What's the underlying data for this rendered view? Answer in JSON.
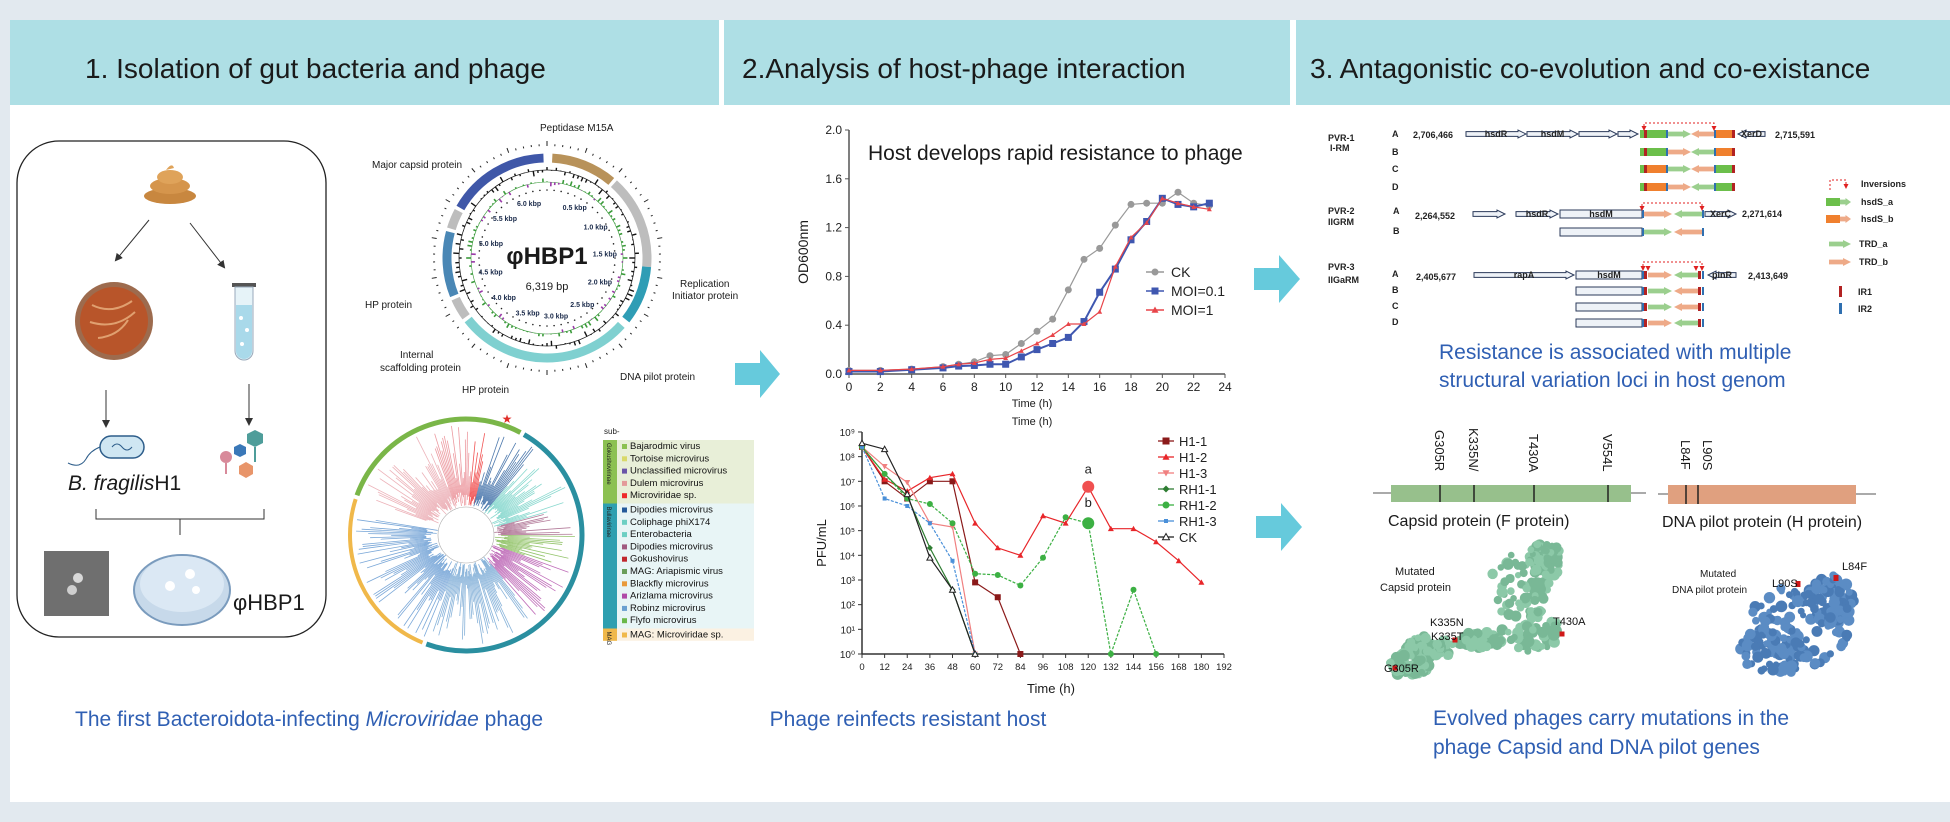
{
  "colors": {
    "header_band": "#aedfe5",
    "card": "#ffffff",
    "background": "#e2e9ef",
    "caption": "#2f5fb3",
    "arrow": "#66cadc"
  },
  "sections": [
    {
      "title": "1. Isolation of gut bacteria and phage"
    },
    {
      "title": "2.Analysis of host-phage interaction"
    },
    {
      "title": "3. Antagonistic co-evolution and co-existance"
    }
  ],
  "isolation": {
    "icons": [
      "stool-icon",
      "petri-dish-icon",
      "culture-tube-icon",
      "bacterium-icon",
      "phage-icon",
      "electron-micrograph",
      "plaque-plate-icon"
    ],
    "bacterium_label_italic": "B. fragilis",
    "bacterium_label_strain": "H1",
    "phage_label": "φHBP1",
    "caption_pre": "The first Bacteroidota-infecting ",
    "caption_italic": "Microviridae",
    "caption_post": " phage"
  },
  "genome_map": {
    "name": "φHBP1",
    "size": "6,319 bp",
    "kbp_labels": [
      "0.5 kbp",
      "1.0 kbp",
      "1.5 kbp",
      "2.0 kbp",
      "2.5 kbp",
      "3.0 kbp",
      "3.5 kbp",
      "4.0 kbp",
      "4.5 kbp",
      "5.0 kbp",
      "5.5 kbp",
      "6.0 kbp"
    ],
    "genes": {
      "peptidase": "Peptidase M15A",
      "major_capsid": "Major capsid protein",
      "replication_1": "Replication",
      "replication_2": "Initiator protein",
      "hp_1": "HP protein",
      "scaffolding_1": "Internal",
      "scaffolding_2": "scaffolding protein",
      "hp_2": "HP protein",
      "dna_pilot": "DNA pilot protein"
    }
  },
  "phylogeny": {
    "legend_header": "sub-",
    "groups": [
      {
        "name": "Gokushovirinae",
        "color": "#8cc152",
        "items": [
          {
            "label": "Bajarodmic virus",
            "color": "#8cc152"
          },
          {
            "label": "Tortoise microvirus",
            "color": "#d9d96a"
          },
          {
            "label": "Unclassified microvirus",
            "color": "#6a55a8"
          },
          {
            "label": "Dulem microvirus",
            "color": "#e39a9a"
          },
          {
            "label": "Microviridae sp.",
            "color": "#ee2a2a"
          }
        ]
      },
      {
        "name": "Bullavirinae",
        "color": "#2e9fb0",
        "items": [
          {
            "label": "Dipodies  microvirus",
            "color": "#245a9a"
          },
          {
            "label": "Coliphage phiX174",
            "color": "#6ccfc3"
          },
          {
            "label": "Enterobacteria",
            "color": "#6ccfc3"
          },
          {
            "label": "Dipodies  microvirus",
            "color": "#a05a80"
          },
          {
            "label": "Gokushovirus",
            "color": "#c0282e"
          },
          {
            "label": "MAG: Ariapismic virus",
            "color": "#6a9e5a"
          },
          {
            "label": "Blackfly microvirus",
            "color": "#e89a3a"
          },
          {
            "label": "Arizlama microvirus",
            "color": "#b04aa8"
          },
          {
            "label": "Robinz microvirus",
            "color": "#6aa0d0"
          },
          {
            "label": "Flyfo microvirus",
            "color": "#6ab84a"
          }
        ]
      },
      {
        "name": "MAG",
        "color": "#f0b84a",
        "items": [
          {
            "label": "MAG: Microviridae sp.",
            "color": "#f0b84a"
          }
        ]
      }
    ]
  },
  "chart_data": [
    {
      "type": "line",
      "title": "Host develops rapid resistance to phage",
      "xlabel": "Time (h)",
      "ylabel": "OD600nm",
      "xlim": [
        0,
        24
      ],
      "ylim": [
        0,
        2.0
      ],
      "x_ticks": [
        "0",
        "2",
        "4",
        "6",
        "8",
        "10",
        "12",
        "14",
        "16",
        "18",
        "20",
        "22",
        "24"
      ],
      "y_ticks": [
        "0.0",
        "0.4",
        "0.8",
        "1.2",
        "1.6",
        "2.0"
      ],
      "legend_position": "right",
      "x": [
        0,
        2,
        4,
        6,
        7,
        8,
        9,
        10,
        11,
        12,
        13,
        14,
        15,
        16,
        17,
        18,
        19,
        20,
        21,
        22,
        23
      ],
      "series": [
        {
          "name": "CK",
          "color": "#999999",
          "marker": "circle",
          "values": [
            0.03,
            0.03,
            0.04,
            0.06,
            0.08,
            0.1,
            0.15,
            0.16,
            0.25,
            0.35,
            0.45,
            0.69,
            0.94,
            1.03,
            1.22,
            1.39,
            1.4,
            1.4,
            1.49,
            1.4,
            1.38
          ]
        },
        {
          "name": "MOI=0.1",
          "color": "#3f57b0",
          "marker": "square",
          "values": [
            0.02,
            0.02,
            0.035,
            0.05,
            0.065,
            0.07,
            0.08,
            0.08,
            0.14,
            0.2,
            0.25,
            0.3,
            0.43,
            0.67,
            0.86,
            1.1,
            1.25,
            1.44,
            1.39,
            1.37,
            1.4
          ]
        },
        {
          "name": "MOI=1",
          "color": "#e8454a",
          "marker": "triangle",
          "values": [
            0.03,
            0.03,
            0.04,
            0.06,
            0.08,
            0.09,
            0.12,
            0.13,
            0.19,
            0.25,
            0.32,
            0.41,
            0.41,
            0.51,
            0.88,
            1.12,
            1.24,
            1.44,
            1.4,
            1.37,
            1.35
          ]
        }
      ]
    },
    {
      "type": "line",
      "title": "",
      "xlabel": "Time (h)",
      "top_label": "Time (h)",
      "ylabel": "PFU/mL",
      "y_scale": "log",
      "xlim": [
        0,
        192
      ],
      "ylim": [
        1,
        1000000000
      ],
      "x_ticks": [
        "0",
        "12",
        "24",
        "36",
        "48",
        "60",
        "72",
        "84",
        "96",
        "108",
        "120",
        "132",
        "144",
        "156",
        "168",
        "180",
        "192"
      ],
      "y_ticks": [
        "10⁰",
        "10¹",
        "10²",
        "10³",
        "10⁴",
        "10⁵",
        "10⁶",
        "10⁷",
        "10⁸",
        "10⁹"
      ],
      "legend_position": "right",
      "annotations": [
        {
          "text": "a",
          "x": 120,
          "y": 30000000
        },
        {
          "text": "b",
          "x": 120,
          "y": 1300000
        }
      ],
      "series": [
        {
          "name": "H1-1",
          "color": "#8b1a1a",
          "marker": "square",
          "dash": false,
          "x": [
            0,
            12,
            24,
            36,
            48,
            60,
            72,
            84
          ],
          "values": [
            250000000,
            10000000,
            2000000,
            10000000,
            10000000,
            800,
            200,
            1
          ]
        },
        {
          "name": "H1-2",
          "color": "#e8262a",
          "marker": "triangle",
          "dash": false,
          "x": [
            0,
            12,
            24,
            36,
            48,
            60,
            72,
            84,
            96,
            108,
            120,
            132,
            144,
            156,
            168,
            180
          ],
          "values": [
            250000000,
            12000000,
            4000000,
            14000000,
            20000000,
            200000,
            20000,
            10000,
            400000,
            200000,
            6000000,
            120000,
            120000,
            35000,
            6000,
            800
          ]
        },
        {
          "name": "H1-3",
          "color": "#f08080",
          "marker": "triangle-down",
          "dash": false,
          "x": [
            0,
            12,
            24,
            36,
            48,
            60
          ],
          "values": [
            250000000,
            40000000,
            9000000,
            200000,
            140000,
            1
          ]
        },
        {
          "name": "RH1-1",
          "color": "#2e7d32",
          "marker": "diamond",
          "dash": false,
          "x": [
            0,
            12,
            24,
            36,
            48,
            60
          ],
          "values": [
            250000000,
            20000000,
            2500000,
            20000,
            400,
            1
          ]
        },
        {
          "name": "RH1-2",
          "color": "#3cb043",
          "marker": "circle",
          "dash": true,
          "x": [
            0,
            12,
            24,
            36,
            48,
            60,
            72,
            84,
            96,
            108,
            120,
            132,
            144,
            156
          ],
          "values": [
            250000000,
            20000000,
            2000000,
            1200000,
            200000,
            1800,
            1600,
            600,
            8000,
            350000,
            200000,
            1,
            400,
            1
          ]
        },
        {
          "name": "RH1-3",
          "color": "#4a90d9",
          "marker": "small-square",
          "dash": true,
          "x": [
            0,
            12,
            24,
            36,
            48,
            60
          ],
          "values": [
            250000000,
            2000000,
            1000000,
            200000,
            6000,
            1
          ]
        },
        {
          "name": "CK",
          "color": "#222222",
          "marker": "open-triangle",
          "dash": false,
          "x": [
            0,
            12,
            24,
            36,
            48,
            60
          ],
          "values": [
            350000000,
            200000000,
            3000000,
            8000,
            400,
            1
          ]
        }
      ]
    }
  ],
  "interaction_captions": {
    "reinfection": "Phage reinfects resistant host"
  },
  "structural_variation": {
    "loci": [
      {
        "name": "PVR-1",
        "type": "I-RM",
        "start": "2,706,466",
        "end": "2,715,591",
        "rows": [
          "A",
          "B",
          "C",
          "D"
        ],
        "genes": [
          "hsdR",
          "hsdM",
          "XerD"
        ]
      },
      {
        "name": "PVR-2",
        "type": "IIGRM",
        "start": "2,264,552",
        "end": "2,271,614",
        "rows": [
          "A",
          "B"
        ],
        "genes": [
          "hsdR",
          "hsdM",
          "XerC"
        ]
      },
      {
        "name": "PVR-3",
        "type": "IIGaRM",
        "start": "2,405,677",
        "end": "2,413,649",
        "rows": [
          "A",
          "B",
          "C",
          "D"
        ],
        "genes": [
          "rapA",
          "hsdM",
          "pinR"
        ]
      }
    ],
    "legend": {
      "inversions": "Inversions",
      "hsds_a": "hsdS_a",
      "hsds_b": "hsdS_b",
      "trd_a": "TRD_a",
      "trd_b": "TRD_b",
      "ir1": "IR1",
      "ir2": "IR2"
    },
    "caption_1": "Resistance is associated with multiple",
    "caption_2": "structural variation loci in host genom"
  },
  "mutations": {
    "capsid": {
      "label": "Capsid protein (F protein)",
      "sites": [
        "G305R",
        "K335N/",
        "T430A",
        "V554L"
      ],
      "color": "#97c08c"
    },
    "pilot": {
      "label": "DNA pilot protein (H protein)",
      "sites": [
        "L84F",
        "L90S"
      ],
      "color": "#e0a07f"
    },
    "capsid_structure": {
      "title_1": "Mutated",
      "title_2": "Capsid protein",
      "sites": [
        "K335N",
        "K335T",
        "T430A",
        "G305R"
      ]
    },
    "pilot_structure": {
      "title_1": "Mutated",
      "title_2": "DNA pilot protein",
      "sites": [
        "L90S",
        "L84F"
      ]
    },
    "caption_1": "Evolved phages carry mutations in the",
    "caption_2": "phage Capsid and DNA pilot genes"
  }
}
